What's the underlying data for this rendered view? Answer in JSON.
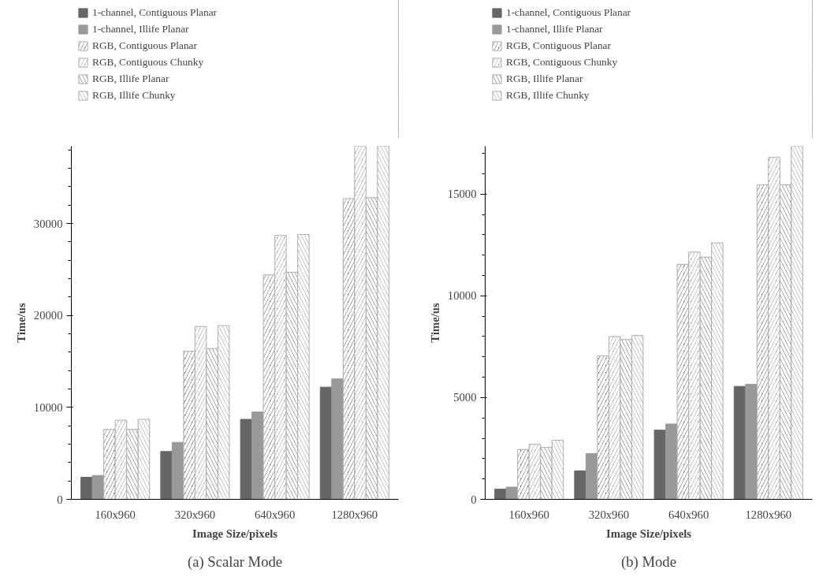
{
  "chart_data": [
    {
      "type": "bar",
      "annotations": [
        "(a) Scalar Mode"
      ],
      "xlabel": "Image Size/pixels",
      "ylabel": "Time/us",
      "categories": [
        "160x960",
        "320x960",
        "640x960",
        "1280x960"
      ],
      "legend": "top left",
      "grid": false,
      "ylim": [
        0,
        38400
      ],
      "yticks": [
        0,
        10000,
        20000,
        30000
      ],
      "series": [
        {
          "name": "1-channel, Contiguous Planar",
          "color": "#666666",
          "values": [
            2400,
            5200,
            8700,
            12200
          ]
        },
        {
          "name": "1-channel, Illife Planar",
          "color": "#999999",
          "values": [
            2600,
            6200,
            9500,
            13100
          ]
        },
        {
          "name": "RGB, Contiguous Planar",
          "color": "#666666",
          "values": [
            7600,
            16100,
            24400,
            32700
          ]
        },
        {
          "name": "RGB, Contiguous Chunky",
          "color": "#999999",
          "values": [
            8600,
            18800,
            28700,
            38400
          ]
        },
        {
          "name": "RGB, Illife Planar",
          "color": "#666666",
          "values": [
            7600,
            16400,
            24700,
            32800
          ]
        },
        {
          "name": "RGB, Illife Chunky",
          "color": "#999999",
          "values": [
            8700,
            18900,
            28800,
            38400
          ]
        }
      ]
    },
    {
      "type": "bar",
      "annotations": [
        "(b) Mode"
      ],
      "xlabel": "Image Size/pixels",
      "ylabel": "Time/us",
      "categories": [
        "160x960",
        "320x960",
        "640x960",
        "1280x960"
      ],
      "legend": "top left",
      "grid": false,
      "ylim": [
        0,
        17350
      ],
      "yticks": [
        0,
        5000,
        10000,
        15000
      ],
      "series": [
        {
          "name": "1-channel, Contiguous Planar",
          "color": "#666666",
          "values": [
            500,
            1400,
            3400,
            5550
          ]
        },
        {
          "name": "1-channel, Illife Planar",
          "color": "#999999",
          "values": [
            600,
            2250,
            3700,
            5650
          ]
        },
        {
          "name": "RGB, Contiguous Planar",
          "color": "#666666",
          "values": [
            2450,
            7050,
            11550,
            15450
          ]
        },
        {
          "name": "RGB, Contiguous Chunky",
          "color": "#999999",
          "values": [
            2700,
            8000,
            12150,
            16800
          ]
        },
        {
          "name": "RGB, Illife Planar",
          "color": "#666666",
          "values": [
            2550,
            7850,
            11900,
            15450
          ]
        },
        {
          "name": "RGB, Illife Chunky",
          "color": "#999999",
          "values": [
            2900,
            8050,
            12600,
            17350
          ]
        }
      ]
    }
  ]
}
